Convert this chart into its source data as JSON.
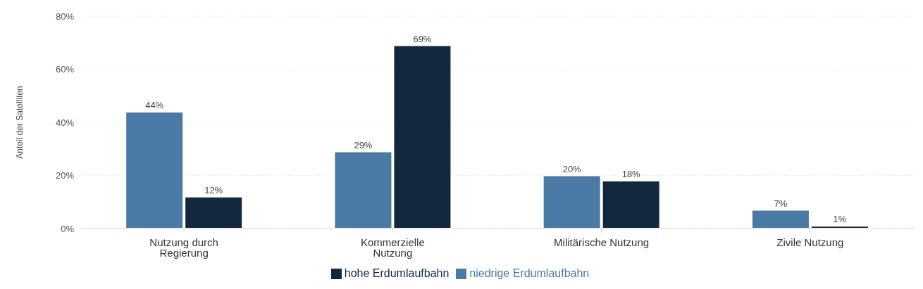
{
  "chart_data": {
    "type": "bar",
    "ylabel": "Anteil der Satelliten",
    "categories": [
      "Nutzung durch Regierung",
      "Kommerzielle Nutzung",
      "Militärische Nutzung",
      "Zivile Nutzung"
    ],
    "series": [
      {
        "name": "niedrige Erdumlaufbahn",
        "color": "#4a7aa5",
        "values": [
          44,
          29,
          20,
          7
        ],
        "value_labels": [
          "44%",
          "29%",
          "20%",
          "7%"
        ]
      },
      {
        "name": "hohe Erdumlaufbahn",
        "color": "#13283f",
        "values": [
          12,
          69,
          18,
          1
        ],
        "value_labels": [
          "12%",
          "69%",
          "18%",
          "1%"
        ]
      }
    ],
    "ylim": [
      0,
      80
    ],
    "yticks": [
      {
        "value": 0,
        "label": "0%"
      },
      {
        "value": 20,
        "label": "20%"
      },
      {
        "value": 40,
        "label": "40%"
      },
      {
        "value": 60,
        "label": "60%"
      },
      {
        "value": 80,
        "label": "80%"
      }
    ],
    "grid": "y",
    "legend": "bottom"
  }
}
